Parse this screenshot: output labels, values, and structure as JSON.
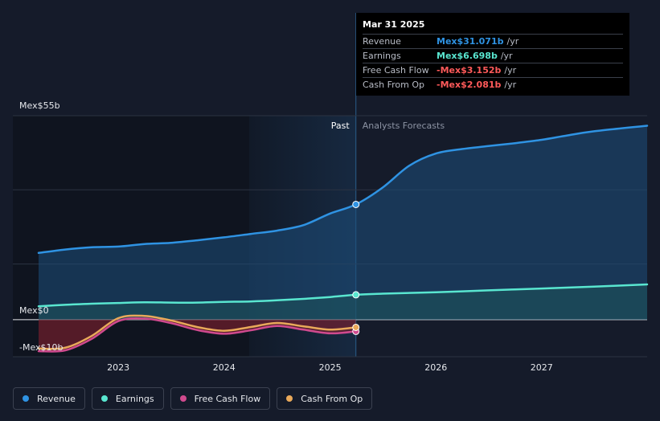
{
  "colors": {
    "background": "#151b2a",
    "revenue": "#2f93e3",
    "earnings": "#59e6d0",
    "free_cash_flow": "#d04a8e",
    "cash_from_op": "#e9a95a",
    "negative": "#ff5a5a"
  },
  "tooltip": {
    "date": "Mar 31 2025",
    "rows": [
      {
        "label": "Revenue",
        "value": "Mex$31.071b",
        "unit": "/yr",
        "color": "#2f93e3"
      },
      {
        "label": "Earnings",
        "value": "Mex$6.698b",
        "unit": "/yr",
        "color": "#59e6d0"
      },
      {
        "label": "Free Cash Flow",
        "value": "-Mex$3.152b",
        "unit": "/yr",
        "color": "#ff5a5a"
      },
      {
        "label": "Cash From Op",
        "value": "-Mex$2.081b",
        "unit": "/yr",
        "color": "#ff5a5a"
      }
    ]
  },
  "section_labels": {
    "past": "Past",
    "forecast": "Analysts Forecasts"
  },
  "legend": [
    {
      "label": "Revenue",
      "color": "#2f93e3"
    },
    {
      "label": "Earnings",
      "color": "#59e6d0"
    },
    {
      "label": "Free Cash Flow",
      "color": "#d04a8e"
    },
    {
      "label": "Cash From Op",
      "color": "#e9a95a"
    }
  ],
  "chart_data": {
    "type": "line",
    "title": "",
    "xlabel": "",
    "ylabel": "",
    "y_unit": "Mex$ billions",
    "ylim": [
      -10,
      55
    ],
    "xlim": [
      "2022-04-01",
      "2027-12-31"
    ],
    "y_tick_labels": [
      {
        "value": 55,
        "label": "Mex$55b"
      },
      {
        "value": 0,
        "label": "Mex$0"
      },
      {
        "value": -10,
        "label": "-Mex$10b"
      }
    ],
    "x_tick_labels": [
      {
        "value": "2023-01-01",
        "label": "2023"
      },
      {
        "value": "2024-01-01",
        "label": "2024"
      },
      {
        "value": "2025-01-01",
        "label": "2025"
      },
      {
        "value": "2026-01-01",
        "label": "2026"
      },
      {
        "value": "2027-01-01",
        "label": "2027"
      }
    ],
    "past_end": "2025-03-31",
    "series": [
      {
        "name": "Revenue",
        "key": "revenue",
        "points": [
          [
            "2022-04-01",
            18.0
          ],
          [
            "2022-07-01",
            18.9
          ],
          [
            "2022-10-01",
            19.5
          ],
          [
            "2023-01-01",
            19.7
          ],
          [
            "2023-04-01",
            20.4
          ],
          [
            "2023-07-01",
            20.7
          ],
          [
            "2023-10-01",
            21.4
          ],
          [
            "2024-01-01",
            22.2
          ],
          [
            "2024-04-01",
            23.1
          ],
          [
            "2024-07-01",
            24.0
          ],
          [
            "2024-10-01",
            25.5
          ],
          [
            "2025-01-01",
            28.6
          ],
          [
            "2025-03-31",
            31.071
          ],
          [
            "2025-07-01",
            35.6
          ],
          [
            "2025-10-01",
            41.5
          ],
          [
            "2026-01-01",
            44.8
          ],
          [
            "2026-04-01",
            46.0
          ],
          [
            "2026-07-01",
            46.8
          ],
          [
            "2026-10-01",
            47.6
          ],
          [
            "2027-01-01",
            48.5
          ],
          [
            "2027-04-01",
            49.7
          ],
          [
            "2027-07-01",
            50.8
          ],
          [
            "2027-12-31",
            52.3
          ]
        ]
      },
      {
        "name": "Earnings",
        "key": "earnings",
        "points": [
          [
            "2022-04-01",
            3.6
          ],
          [
            "2022-07-01",
            4.0
          ],
          [
            "2022-10-01",
            4.3
          ],
          [
            "2023-01-01",
            4.5
          ],
          [
            "2023-04-01",
            4.7
          ],
          [
            "2023-07-01",
            4.6
          ],
          [
            "2023-10-01",
            4.6
          ],
          [
            "2024-01-01",
            4.8
          ],
          [
            "2024-04-01",
            4.9
          ],
          [
            "2024-07-01",
            5.2
          ],
          [
            "2024-10-01",
            5.6
          ],
          [
            "2025-01-01",
            6.1
          ],
          [
            "2025-03-31",
            6.698
          ],
          [
            "2025-07-01",
            7.0
          ],
          [
            "2026-01-01",
            7.4
          ],
          [
            "2026-07-01",
            7.9
          ],
          [
            "2027-01-01",
            8.4
          ],
          [
            "2027-07-01",
            8.9
          ],
          [
            "2027-12-31",
            9.5
          ]
        ]
      },
      {
        "name": "Free Cash Flow",
        "key": "free_cash_flow",
        "points": [
          [
            "2022-04-01",
            -8.5
          ],
          [
            "2022-07-01",
            -8.3
          ],
          [
            "2022-10-01",
            -5.2
          ],
          [
            "2023-01-01",
            -0.4
          ],
          [
            "2023-04-01",
            0.3
          ],
          [
            "2023-07-01",
            -0.9
          ],
          [
            "2023-10-01",
            -2.8
          ],
          [
            "2024-01-01",
            -3.8
          ],
          [
            "2024-04-01",
            -2.9
          ],
          [
            "2024-07-01",
            -1.7
          ],
          [
            "2024-10-01",
            -2.7
          ],
          [
            "2025-01-01",
            -3.7
          ],
          [
            "2025-03-31",
            -3.152
          ]
        ]
      },
      {
        "name": "Cash From Op",
        "key": "cash_from_op",
        "points": [
          [
            "2022-04-01",
            -7.8
          ],
          [
            "2022-07-01",
            -7.6
          ],
          [
            "2022-10-01",
            -4.4
          ],
          [
            "2023-01-01",
            0.4
          ],
          [
            "2023-04-01",
            1.0
          ],
          [
            "2023-07-01",
            -0.2
          ],
          [
            "2023-10-01",
            -2.0
          ],
          [
            "2024-01-01",
            -3.0
          ],
          [
            "2024-04-01",
            -2.0
          ],
          [
            "2024-07-01",
            -0.9
          ],
          [
            "2024-10-01",
            -1.8
          ],
          [
            "2025-01-01",
            -2.7
          ],
          [
            "2025-03-31",
            -2.081
          ]
        ]
      }
    ]
  }
}
